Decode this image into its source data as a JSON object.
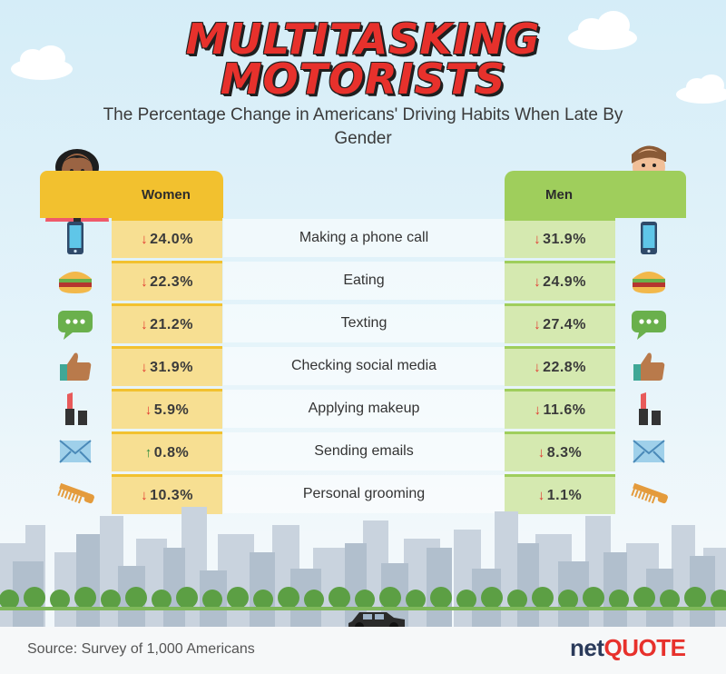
{
  "title": {
    "line1": "MULTITASKING",
    "line2": "MOTORISTS"
  },
  "subtitle": "The Percentage Change in Americans' Driving Habits When Late By Gender",
  "columns": {
    "women": "Women",
    "men": "Men"
  },
  "colors": {
    "women": "#f2c12f",
    "men": "#9fce5c",
    "title": "#e7312c",
    "decrease": "#e2382f",
    "increase": "#2e8b3d"
  },
  "source": "Source: Survey of 1,000 Americans",
  "brand": {
    "part1": "net",
    "part2": "QUOTE"
  },
  "chart_data": {
    "type": "table",
    "title": "MULTITASKING MOTORISTS",
    "subtitle": "The Percentage Change in Americans' Driving Habits When Late By Gender",
    "columns": [
      "Women",
      "Men"
    ],
    "rows": [
      {
        "activity": "Making a phone call",
        "icon": "smartphone-icon",
        "women": {
          "value": -24.0,
          "label": "24.0%",
          "direction": "down"
        },
        "men": {
          "value": -31.9,
          "label": "31.9%",
          "direction": "down"
        }
      },
      {
        "activity": "Eating",
        "icon": "burger-icon",
        "women": {
          "value": -22.3,
          "label": "22.3%",
          "direction": "down"
        },
        "men": {
          "value": -24.9,
          "label": "24.9%",
          "direction": "down"
        }
      },
      {
        "activity": "Texting",
        "icon": "chat-bubble-icon",
        "women": {
          "value": -21.2,
          "label": "21.2%",
          "direction": "down"
        },
        "men": {
          "value": -27.4,
          "label": "27.4%",
          "direction": "down"
        }
      },
      {
        "activity": "Checking social media",
        "icon": "thumbs-up-icon",
        "women": {
          "value": -31.9,
          "label": "31.9%",
          "direction": "down"
        },
        "men": {
          "value": -22.8,
          "label": "22.8%",
          "direction": "down"
        }
      },
      {
        "activity": "Applying makeup",
        "icon": "lipstick-icon",
        "women": {
          "value": -5.9,
          "label": "5.9%",
          "direction": "down"
        },
        "men": {
          "value": -11.6,
          "label": "11.6%",
          "direction": "down"
        }
      },
      {
        "activity": "Sending emails",
        "icon": "envelope-icon",
        "women": {
          "value": 0.8,
          "label": "0.8%",
          "direction": "up"
        },
        "men": {
          "value": -8.3,
          "label": "8.3%",
          "direction": "down"
        }
      },
      {
        "activity": "Personal grooming",
        "icon": "comb-icon",
        "women": {
          "value": -10.3,
          "label": "10.3%",
          "direction": "down"
        },
        "men": {
          "value": -1.1,
          "label": "1.1%",
          "direction": "down"
        }
      }
    ]
  }
}
